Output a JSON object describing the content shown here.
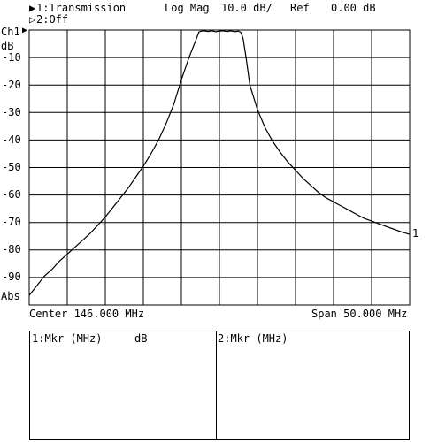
{
  "header": {
    "trace1": "1:Transmission",
    "trace2": "2:Off",
    "format": "Log Mag",
    "scale": "10.0 dB/",
    "ref": "Ref",
    "ref_value": "0.00 dB"
  },
  "channel_label": "Ch1",
  "unit_label": "dB",
  "abs_label": "Abs",
  "trace_marker_label": "1",
  "footer": {
    "center": "Center 146.000 MHz",
    "span": "Span 50.000 MHz"
  },
  "marker_table": {
    "col1_label": "1:Mkr (MHz)",
    "col1_unit": "dB",
    "col2_label": "2:Mkr (MHz)"
  },
  "chart_data": {
    "type": "line",
    "xlabel": "",
    "ylabel": "dB",
    "xlim": [
      121.0,
      171.0
    ],
    "ylim": [
      -100,
      0
    ],
    "y_ticks": [
      -10,
      -20,
      -30,
      -40,
      -50,
      -60,
      -70,
      -80,
      -90
    ],
    "grid": true,
    "series": [
      {
        "name": "1:Transmission",
        "x": [
          121.0,
          122.0,
          123.0,
          124.0,
          125.0,
          126.0,
          127.0,
          128.0,
          129.0,
          130.0,
          131.0,
          132.0,
          133.0,
          134.0,
          135.0,
          136.0,
          137.0,
          138.0,
          139.0,
          140.0,
          141.0,
          142.0,
          143.0,
          143.3,
          143.6,
          144.0,
          144.5,
          145.0,
          145.5,
          146.0,
          146.5,
          147.0,
          147.5,
          148.0,
          148.5,
          148.8,
          149.1,
          149.5,
          150.0,
          151.0,
          152.0,
          153.0,
          154.0,
          155.0,
          156.0,
          157.0,
          158.0,
          159.0,
          160.0,
          161.0,
          162.0,
          163.0,
          164.0,
          165.0,
          166.0,
          167.0,
          168.0,
          169.0,
          170.0,
          171.0
        ],
        "y": [
          -96.5,
          -93,
          -89.5,
          -87,
          -84,
          -81.5,
          -79,
          -76.5,
          -74,
          -71,
          -68,
          -64.5,
          -61,
          -57.5,
          -53.5,
          -49.5,
          -45,
          -40,
          -34,
          -27,
          -18,
          -10,
          -3,
          -0.7,
          -0.4,
          -0.3,
          -0.5,
          -0.3,
          -0.6,
          -0.4,
          -0.3,
          -0.5,
          -0.3,
          -0.6,
          -0.4,
          -0.8,
          -3,
          -10,
          -20,
          -29,
          -35.5,
          -40.5,
          -44.5,
          -48,
          -51,
          -54,
          -56.5,
          -59,
          -61,
          -62.5,
          -64,
          -65.5,
          -67,
          -68.5,
          -69.5,
          -70.5,
          -71.5,
          -72.5,
          -73.5,
          -74.3
        ]
      }
    ]
  }
}
